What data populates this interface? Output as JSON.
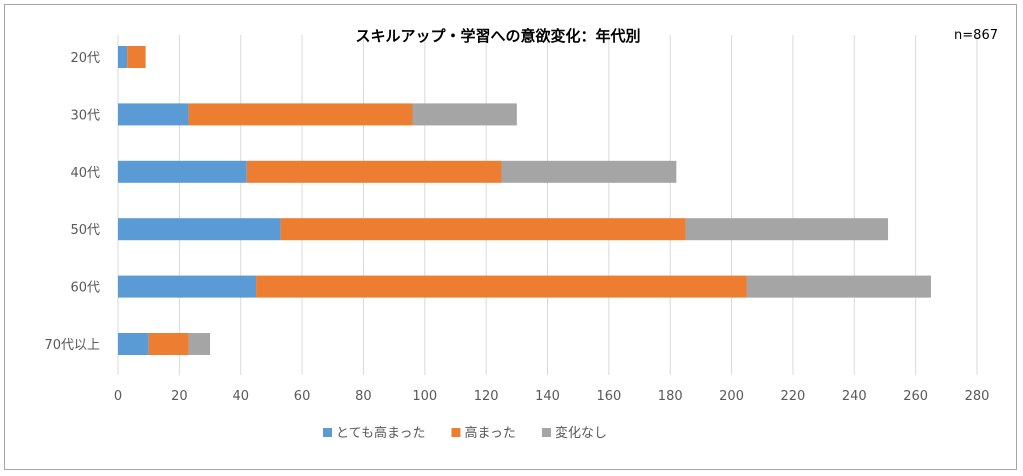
{
  "chart_data": {
    "type": "bar",
    "orientation": "horizontal",
    "stacked": true,
    "title": "スキルアップ・学習への意欲変化：年代別",
    "annotation": "n=867",
    "categories": [
      "20代",
      "30代",
      "40代",
      "50代",
      "60代",
      "70代以上"
    ],
    "series": [
      {
        "name": "とても高まった",
        "color": "#5b9bd5",
        "values": [
          3,
          23,
          42,
          53,
          45,
          10
        ]
      },
      {
        "name": "高まった",
        "color": "#ed7d31",
        "values": [
          6,
          73,
          83,
          132,
          160,
          13
        ]
      },
      {
        "name": "変化なし",
        "color": "#a5a5a5",
        "values": [
          0,
          34,
          57,
          66,
          60,
          7
        ]
      }
    ],
    "xlim": [
      0,
      280
    ],
    "xticks": [
      0,
      20,
      40,
      60,
      80,
      100,
      120,
      140,
      160,
      180,
      200,
      220,
      240,
      260,
      280
    ],
    "grid": true,
    "legend_position": "bottom"
  }
}
